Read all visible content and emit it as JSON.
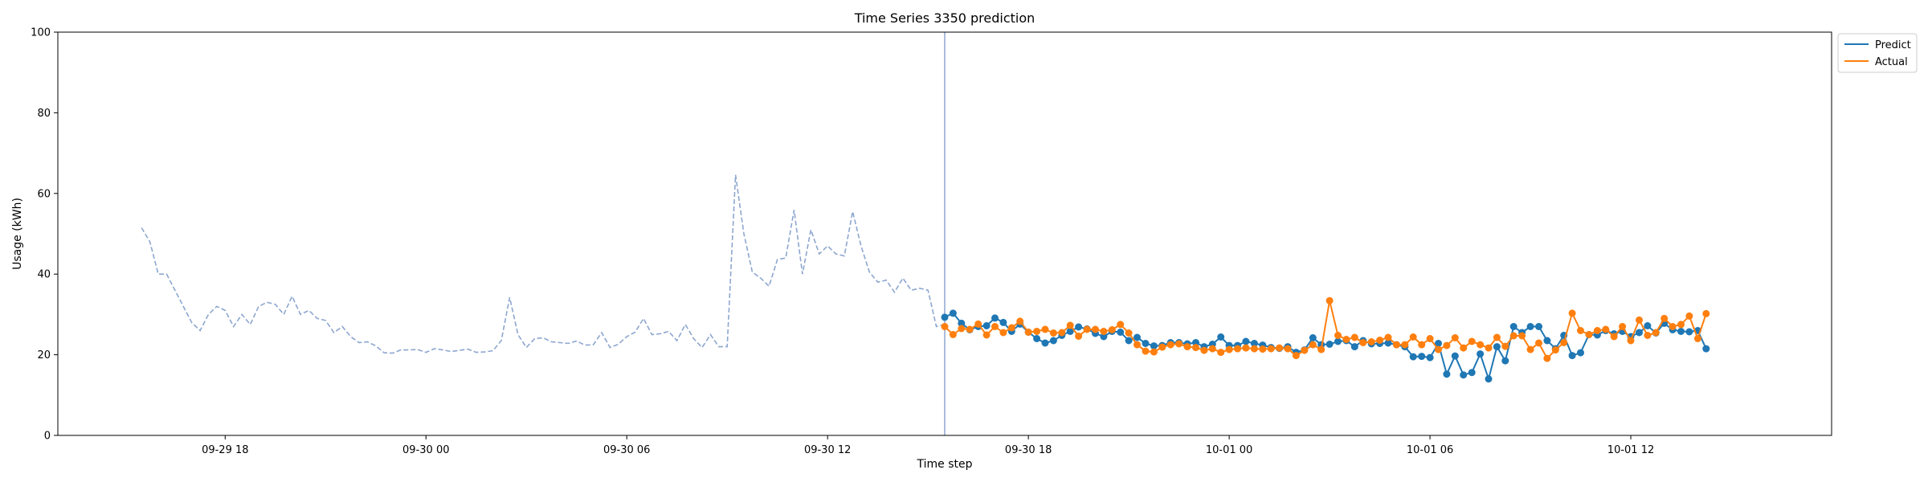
{
  "chart_data": {
    "type": "line",
    "title": "Time Series 3350 prediction",
    "xlabel": "Time step",
    "ylabel": "Usage (kWh)",
    "ylim": [
      0,
      100
    ],
    "yticks": [
      0,
      20,
      40,
      60,
      80,
      100
    ],
    "xlim": [
      "2023-09-29 13:00",
      "2023-10-01 18:00"
    ],
    "xticks": [
      {
        "t": "2023-09-29 18:00",
        "label": "09-29 18"
      },
      {
        "t": "2023-09-30 00:00",
        "label": "09-30 00"
      },
      {
        "t": "2023-09-30 06:00",
        "label": "09-30 06"
      },
      {
        "t": "2023-09-30 12:00",
        "label": "09-30 12"
      },
      {
        "t": "2023-09-30 18:00",
        "label": "09-30 18"
      },
      {
        "t": "2023-10-01 00:00",
        "label": "10-01 00"
      },
      {
        "t": "2023-10-01 06:00",
        "label": "10-01 06"
      },
      {
        "t": "2023-10-01 12:00",
        "label": "10-01 12"
      }
    ],
    "step_minutes": 15,
    "history": {
      "start": "2023-09-29 15:30",
      "values": [
        51.5,
        48,
        40,
        40,
        36,
        32,
        28,
        26,
        30,
        32,
        31,
        27,
        30,
        27.5,
        32,
        33,
        32.5,
        30,
        34.5,
        30,
        31,
        29,
        28.5,
        25.5,
        27,
        24.5,
        23,
        23.2,
        22.2,
        20.5,
        20.4,
        21.2,
        21.2,
        21.3,
        20.6,
        21.5,
        21.2,
        20.8,
        21.1,
        21.4,
        20.6,
        20.7,
        21,
        23.5,
        34.2,
        25,
        21.8,
        24,
        24.2,
        23.2,
        23,
        22.8,
        23.4,
        22.4,
        22.5,
        25.5,
        21.8,
        22.6,
        24.5,
        25.6,
        29,
        25,
        25.2,
        25.8,
        23.5,
        27.5,
        24,
        21.8,
        25,
        22,
        22,
        64.6,
        50,
        40.5,
        39,
        37,
        43.6,
        44,
        55.9,
        40,
        51,
        45,
        47,
        45,
        44.5,
        55.5,
        47,
        40.5,
        38,
        38.5,
        35.5,
        39,
        36,
        36.5,
        36,
        27,
        27.5
      ]
    },
    "forecast_start": "2023-09-30 15:30",
    "series": [
      {
        "name": "Predict",
        "color": "#1f77b4",
        "values": [
          29.3,
          30.3,
          27.8,
          26.2,
          27.0,
          27.2,
          29.1,
          28.0,
          25.8,
          27.6,
          25.6,
          24.0,
          22.9,
          23.5,
          24.8,
          25.8,
          26.9,
          26.4,
          25.3,
          24.5,
          25.8,
          25.6,
          23.5,
          24.3,
          22.8,
          22.2,
          22.3,
          23.0,
          23.0,
          22.7,
          23.0,
          22.0,
          22.6,
          24.4,
          22.3,
          22.3,
          23.3,
          22.8,
          22.4,
          21.8,
          21.6,
          22.0,
          20.6,
          21.2,
          24.2,
          22.5,
          22.6,
          23.3,
          23.5,
          22.0,
          23.5,
          22.7,
          22.8,
          22.9,
          22.5,
          22.0,
          19.5,
          19.6,
          19.3,
          22.8,
          15.2,
          19.7,
          15.0,
          15.6,
          20.2,
          14.0,
          22.0,
          18.5,
          27.0,
          25.5,
          27.0,
          27.0,
          23.5,
          21.5,
          24.8,
          19.8,
          20.5,
          25.0,
          24.9,
          26.0,
          25.2,
          25.8,
          24.5,
          25.5,
          27.2,
          25.4,
          27.8,
          26.2,
          25.8,
          25.7,
          26.0,
          21.5
        ]
      },
      {
        "name": "Actual",
        "color": "#ff7f0e",
        "values": [
          27.0,
          25.0,
          26.5,
          26.3,
          27.6,
          24.9,
          27.0,
          25.5,
          26.7,
          28.3,
          25.6,
          25.8,
          26.3,
          25.4,
          25.5,
          27.3,
          24.6,
          26.3,
          26.3,
          25.8,
          26.2,
          27.5,
          25.4,
          22.5,
          20.9,
          20.7,
          21.9,
          22.5,
          22.7,
          22.0,
          21.8,
          21.1,
          21.5,
          20.6,
          21.3,
          21.5,
          21.7,
          21.5,
          21.4,
          21.5,
          21.7,
          21.5,
          19.8,
          21.1,
          22.5,
          21.3,
          33.4,
          24.8,
          23.8,
          24.3,
          23.0,
          23.2,
          23.6,
          24.3,
          22.5,
          22.5,
          24.4,
          22.5,
          24.0,
          21.3,
          22.3,
          24.2,
          21.7,
          23.3,
          22.5,
          21.7,
          24.3,
          22.1,
          24.7,
          24.7,
          21.3,
          22.9,
          19.1,
          21.2,
          23.0,
          30.3,
          26.0,
          25.0,
          26.0,
          26.3,
          24.5,
          27.0,
          23.5,
          28.6,
          24.8,
          25.5,
          29.0,
          27.0,
          27.5,
          29.6,
          24.0,
          30.2
        ]
      }
    ],
    "legend_position": "upper-right-outside",
    "grid": false
  }
}
